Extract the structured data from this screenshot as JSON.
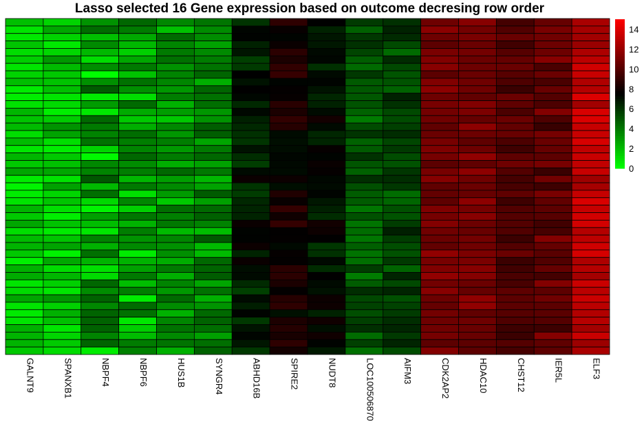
{
  "chart_data": {
    "type": "heatmap",
    "title": "Lasso selected 16 Gene expression based on outcome decresing row order",
    "columns": [
      "GALNT9",
      "SPANXB1",
      "NBPF4",
      "NBPF6",
      "HUS1B",
      "SYNGR4",
      "ABHD16B",
      "SPIRE2",
      "NUDT8",
      "LOC100506870",
      "AIFM3",
      "CDK2AP2",
      "HDAC10",
      "CHST12",
      "IER5L",
      "ELF3"
    ],
    "row_count": 45,
    "column_means": [
      1.5,
      1.8,
      2.5,
      2.5,
      3.0,
      3.5,
      6.8,
      8.0,
      7.0,
      5.0,
      5.5,
      11.0,
      11.0,
      10.0,
      10.3,
      13.0
    ],
    "column_spread": [
      1.2,
      1.4,
      2.5,
      2.0,
      1.5,
      1.6,
      1.2,
      1.1,
      1.1,
      1.2,
      1.2,
      0.8,
      0.8,
      0.8,
      1.2,
      1.0
    ],
    "value_range": [
      0,
      15
    ],
    "colorbar": {
      "ticks": [
        0,
        2,
        4,
        6,
        8,
        10,
        12,
        14
      ],
      "low_color": "#00ff00",
      "mid_color": "#000000",
      "high_color": "#ff0000",
      "midpoint": 7.5
    },
    "grid": false,
    "legend": "right"
  }
}
